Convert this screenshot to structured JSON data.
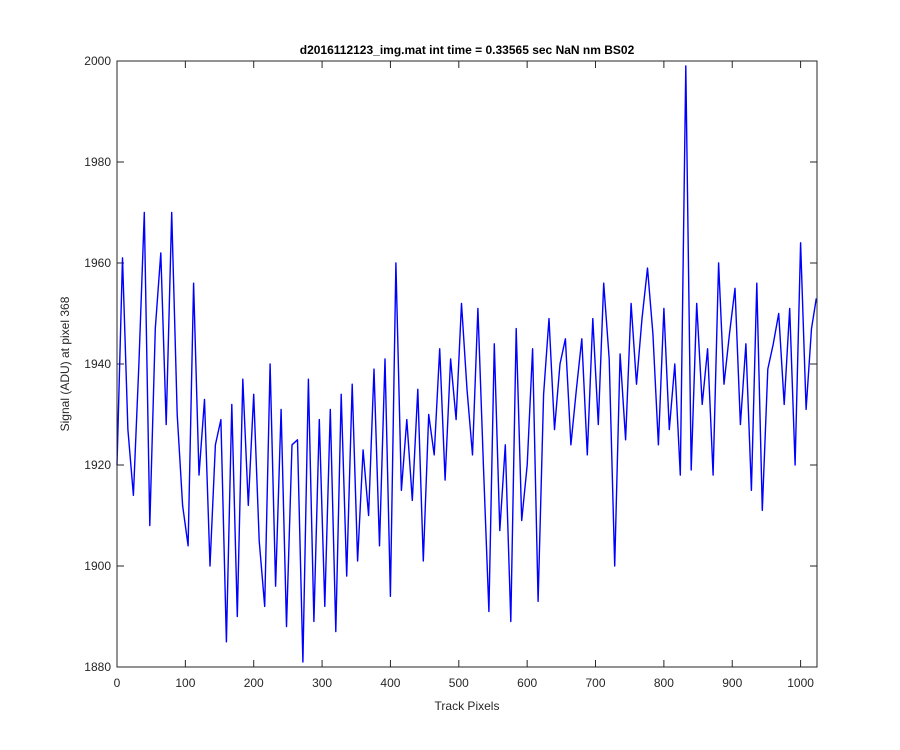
{
  "chart_data": {
    "type": "line",
    "title": "d2016112123_img.mat int time = 0.33565 sec  NaN nm BS02",
    "xlabel": "Track Pixels",
    "ylabel": "Signal (ADU) at pixel 368",
    "xlim": [
      0,
      1024
    ],
    "ylim": [
      1880,
      2000
    ],
    "xticks": [
      0,
      100,
      200,
      300,
      400,
      500,
      600,
      700,
      800,
      900,
      1000
    ],
    "yticks": [
      1880,
      1900,
      1920,
      1940,
      1960,
      1980,
      2000
    ],
    "grid": false,
    "legend": "none",
    "series_color": "#0000ff",
    "series": [
      {
        "x": [
          0,
          8,
          16,
          24,
          32,
          40,
          48,
          56,
          64,
          72,
          80,
          88,
          96,
          104,
          112,
          120,
          128,
          136,
          144,
          152,
          160,
          168,
          176,
          184,
          192,
          200,
          208,
          216,
          224,
          232,
          240,
          248,
          256,
          264,
          272,
          280,
          288,
          296,
          304,
          312,
          320,
          328,
          336,
          344,
          352,
          360,
          368,
          376,
          384,
          392,
          400,
          408,
          416,
          424,
          432,
          440,
          448,
          456,
          464,
          472,
          480,
          488,
          496,
          504,
          512,
          520,
          528,
          536,
          544,
          552,
          560,
          568,
          576,
          584,
          592,
          600,
          608,
          616,
          624,
          632,
          640,
          648,
          656,
          664,
          672,
          680,
          688,
          696,
          704,
          712,
          720,
          728,
          736,
          744,
          752,
          760,
          768,
          776,
          784,
          792,
          800,
          808,
          816,
          824,
          832,
          840,
          848,
          856,
          864,
          872,
          880,
          888,
          896,
          904,
          912,
          920,
          928,
          936,
          944,
          952,
          960,
          968,
          976,
          984,
          992,
          1000,
          1008,
          1016,
          1023
        ],
        "y": [
          1920,
          1961,
          1927,
          1914,
          1940,
          1970,
          1908,
          1947,
          1962,
          1928,
          1970,
          1930,
          1912,
          1904,
          1956,
          1918,
          1933,
          1900,
          1924,
          1929,
          1885,
          1932,
          1890,
          1937,
          1912,
          1934,
          1905,
          1892,
          1940,
          1896,
          1931,
          1888,
          1924,
          1925,
          1881,
          1937,
          1889,
          1929,
          1892,
          1931,
          1887,
          1934,
          1898,
          1936,
          1901,
          1923,
          1910,
          1939,
          1904,
          1941,
          1894,
          1960,
          1915,
          1929,
          1913,
          1935,
          1901,
          1930,
          1922,
          1943,
          1917,
          1941,
          1929,
          1952,
          1935,
          1922,
          1951,
          1920,
          1891,
          1944,
          1907,
          1924,
          1889,
          1947,
          1909,
          1920,
          1943,
          1893,
          1934,
          1949,
          1927,
          1940,
          1945,
          1924,
          1935,
          1945,
          1922,
          1949,
          1928,
          1956,
          1941,
          1900,
          1942,
          1925,
          1952,
          1936,
          1949,
          1959,
          1946,
          1924,
          1951,
          1927,
          1940,
          1918,
          1999,
          1919,
          1952,
          1932,
          1943,
          1918,
          1960,
          1936,
          1946,
          1955,
          1928,
          1944,
          1915,
          1956,
          1911,
          1939,
          1944,
          1950,
          1932,
          1951,
          1920,
          1964,
          1931,
          1947,
          1953
        ]
      }
    ]
  }
}
